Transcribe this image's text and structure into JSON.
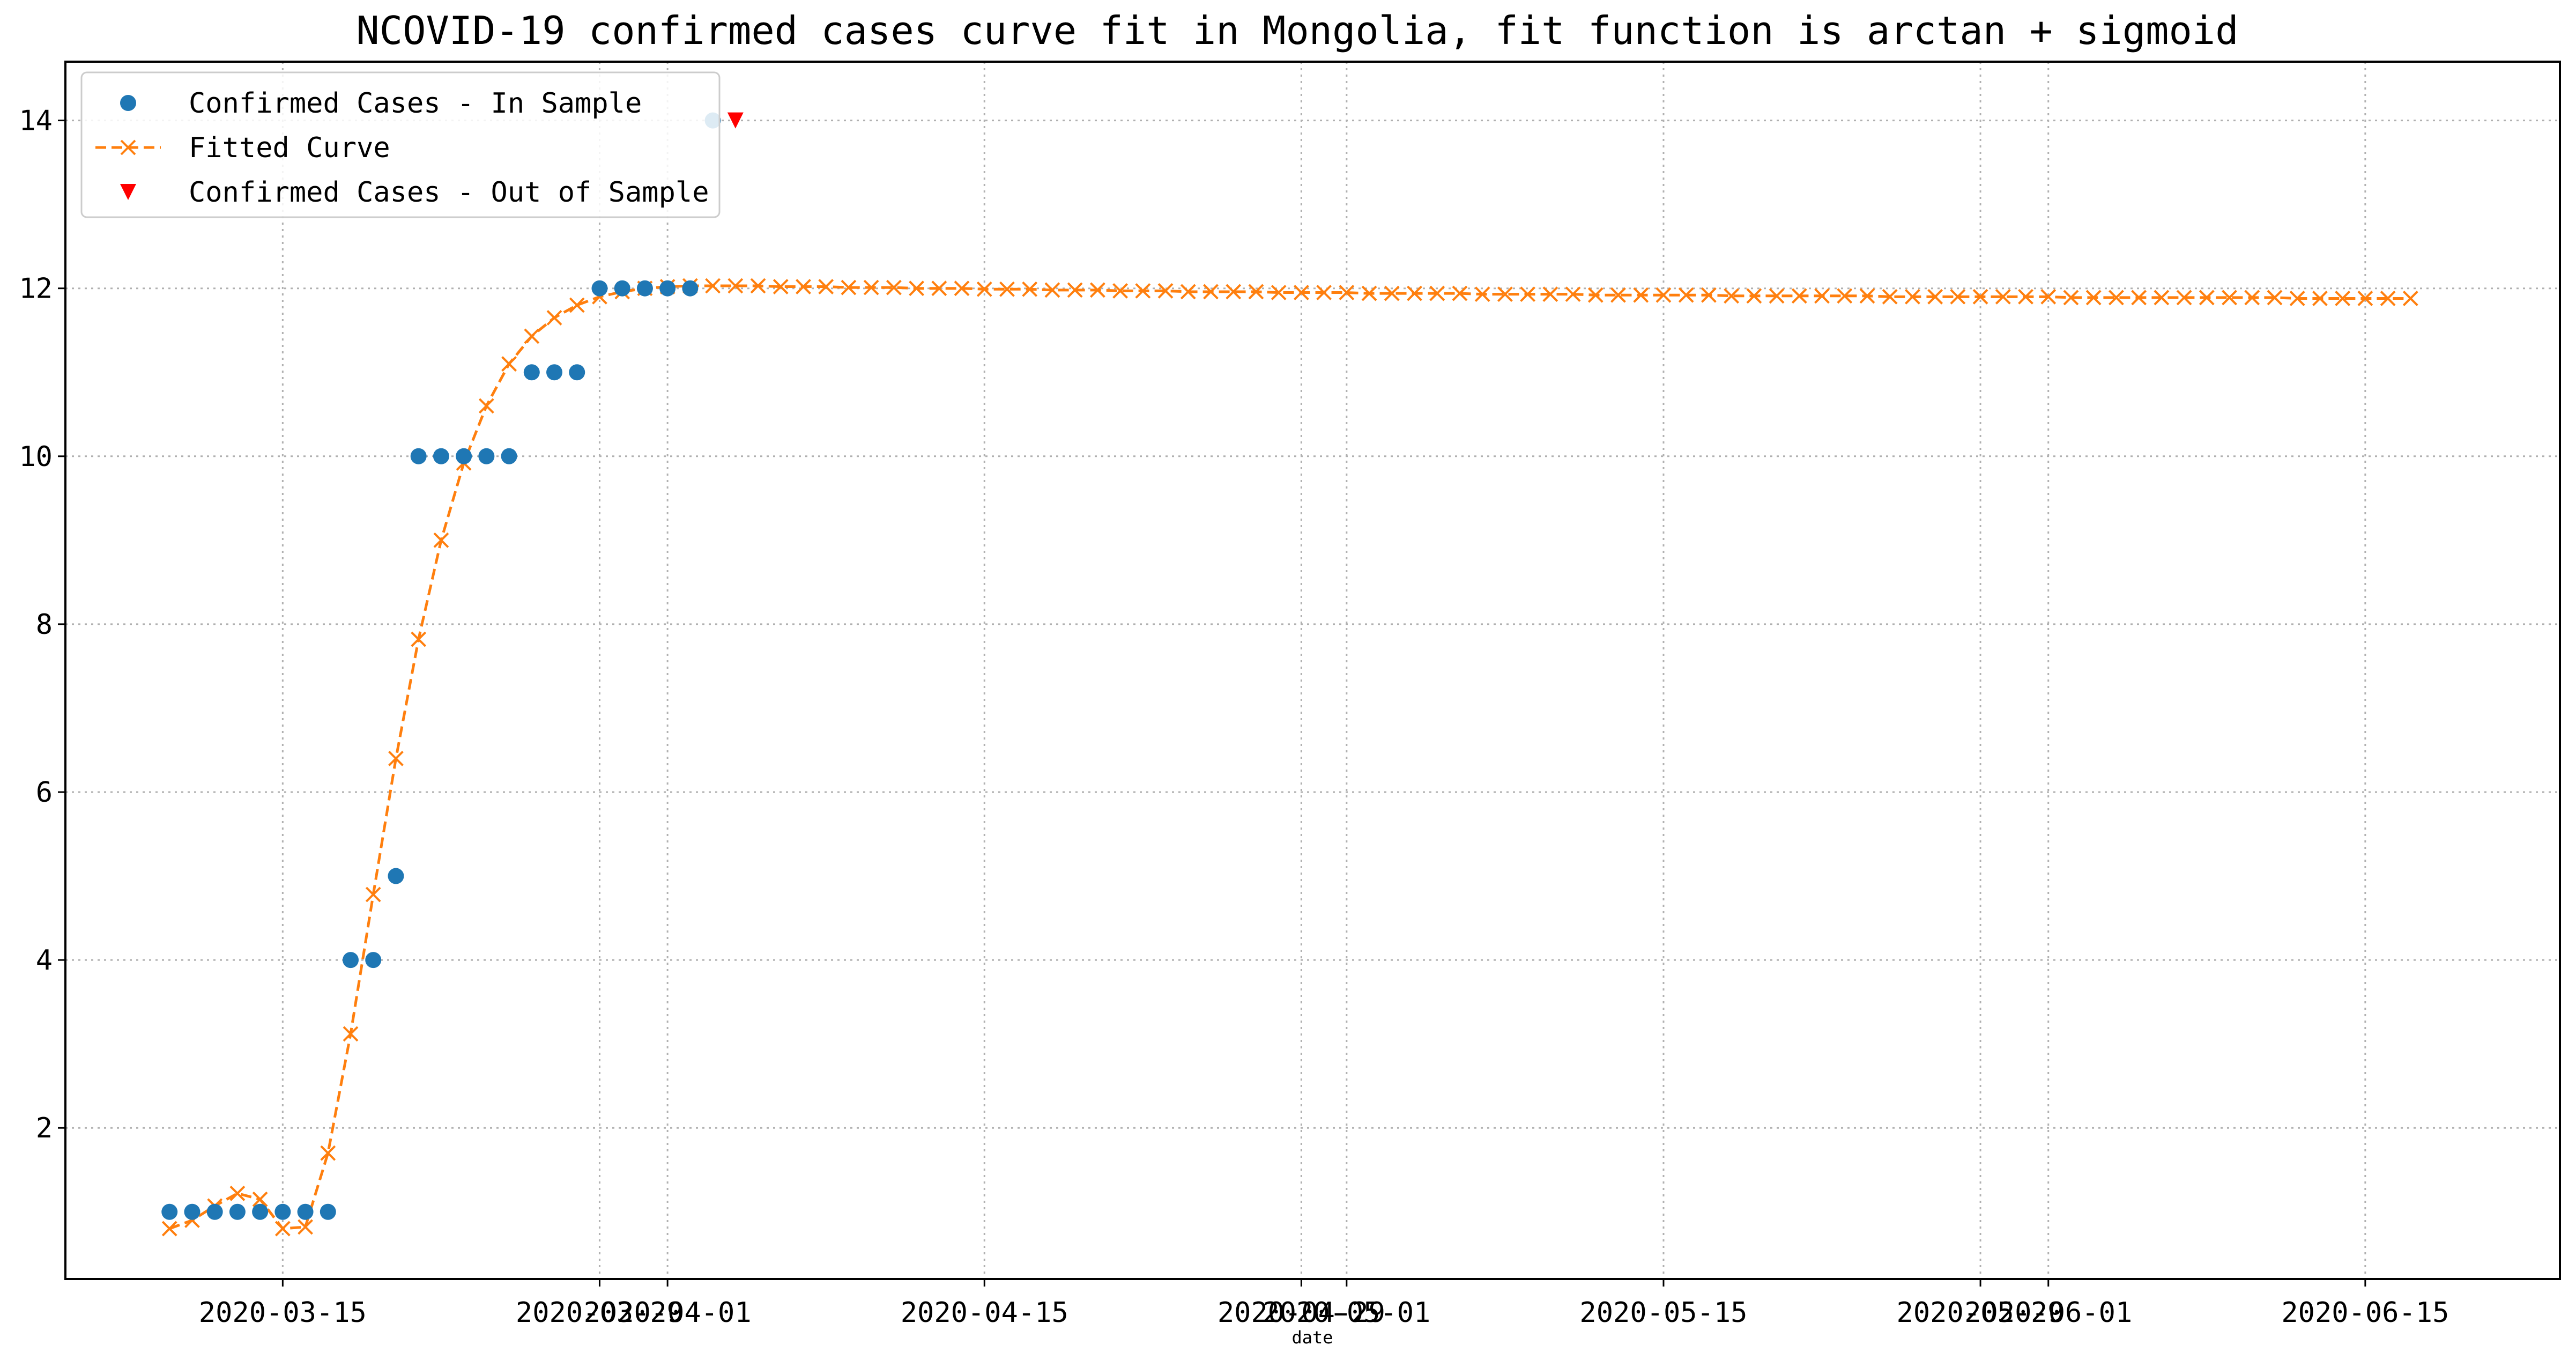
{
  "chart_data": {
    "type": "line",
    "title": "NCOVID-19 confirmed cases curve fit in Mongolia, fit function is arctan + sigmoid",
    "xlabel": "date",
    "ylabel": "",
    "x_start_date": "2020-03-10",
    "xlim_days": [
      -4.6,
      105.6
    ],
    "ylim": [
      0.2,
      14.7
    ],
    "x_ticks": [
      {
        "label": "2020-03-15",
        "day": 5
      },
      {
        "label": "2020-03-29",
        "day": 19
      },
      {
        "label": "2020-04-01",
        "day": 22
      },
      {
        "label": "2020-04-15",
        "day": 36
      },
      {
        "label": "2020-04-29",
        "day": 50
      },
      {
        "label": "2020-05-01",
        "day": 52
      },
      {
        "label": "2020-05-15",
        "day": 66
      },
      {
        "label": "2020-05-29",
        "day": 80
      },
      {
        "label": "2020-06-01",
        "day": 83
      },
      {
        "label": "2020-06-15",
        "day": 97
      }
    ],
    "y_ticks": [
      2,
      4,
      6,
      8,
      10,
      12,
      14
    ],
    "grid": true,
    "legend_position": "top-left",
    "series": [
      {
        "name": "Confirmed Cases - In Sample",
        "type": "scatter",
        "color": "#1f77b4",
        "marker": "circle",
        "x": [
          0,
          1,
          2,
          3,
          4,
          5,
          6,
          7,
          8,
          9,
          10,
          11,
          12,
          13,
          14,
          15,
          16,
          17,
          18,
          19,
          20,
          21,
          22,
          23,
          24
        ],
        "y": [
          1,
          1,
          1,
          1,
          1,
          1,
          1,
          1,
          4,
          4,
          5,
          10,
          10,
          10,
          10,
          10,
          11,
          11,
          11,
          12,
          12,
          12,
          12,
          12,
          14
        ]
      },
      {
        "name": "Fitted Curve",
        "type": "line",
        "color": "#ff7f0e",
        "marker": "x",
        "dash": true,
        "x_start": 0,
        "x_end": 99,
        "y": [
          0.8,
          0.9,
          1.07,
          1.22,
          1.15,
          0.8,
          0.82,
          1.7,
          3.12,
          4.78,
          6.4,
          7.82,
          9.0,
          9.92,
          10.6,
          11.1,
          11.43,
          11.65,
          11.8,
          11.9,
          11.96,
          12.0,
          12.02,
          12.03,
          12.03,
          12.03,
          12.03,
          12.02,
          12.02,
          12.02,
          12.01,
          12.01,
          12.01,
          12.0,
          12.0,
          12.0,
          11.99,
          11.99,
          11.99,
          11.98,
          11.98,
          11.98,
          11.97,
          11.97,
          11.97,
          11.96,
          11.96,
          11.96,
          11.96,
          11.95,
          11.95,
          11.95,
          11.95,
          11.94,
          11.94,
          11.94,
          11.94,
          11.94,
          11.93,
          11.93,
          11.93,
          11.93,
          11.93,
          11.92,
          11.92,
          11.92,
          11.92,
          11.92,
          11.92,
          11.91,
          11.91,
          11.91,
          11.91,
          11.91,
          11.91,
          11.91,
          11.9,
          11.9,
          11.9,
          11.9,
          11.9,
          11.9,
          11.9,
          11.9,
          11.89,
          11.89,
          11.89,
          11.89,
          11.89,
          11.89,
          11.89,
          11.89,
          11.89,
          11.89,
          11.88,
          11.88,
          11.88,
          11.88,
          11.88,
          11.88
        ]
      },
      {
        "name": "Confirmed Cases - Out of Sample",
        "type": "scatter",
        "color": "#ff0000",
        "marker": "triangle-down",
        "x": [
          25
        ],
        "y": [
          14
        ]
      }
    ]
  }
}
